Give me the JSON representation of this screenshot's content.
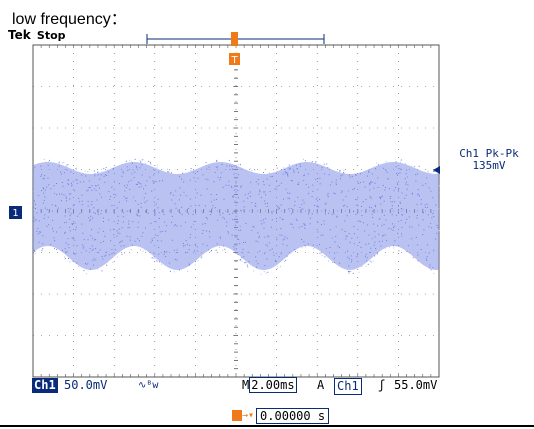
{
  "heading": "low frequency：",
  "scope": {
    "brand": "Tek",
    "run_state": "Stop",
    "measurement": {
      "label": "Ch1 Pk-Pk",
      "value": "135mV"
    },
    "channel_marker": "1",
    "trigger_marker": "T",
    "colors": {
      "trace": "#7f8fe6",
      "grid": "#555555",
      "accent": "#0a2a7a",
      "trigger": "#f07a1a"
    },
    "status_bar": {
      "channel": "Ch1",
      "volts_per_div": "50.0mV",
      "coupling_symbol": "∿ᴮw",
      "timebase_prefix": "M",
      "timebase": "2.00ms",
      "trigger_mode": "A",
      "trigger_source": "Ch1",
      "trigger_slope": "ʃ",
      "trigger_level": "55.0mV"
    },
    "trigger_position": "0.00000 s"
  }
}
